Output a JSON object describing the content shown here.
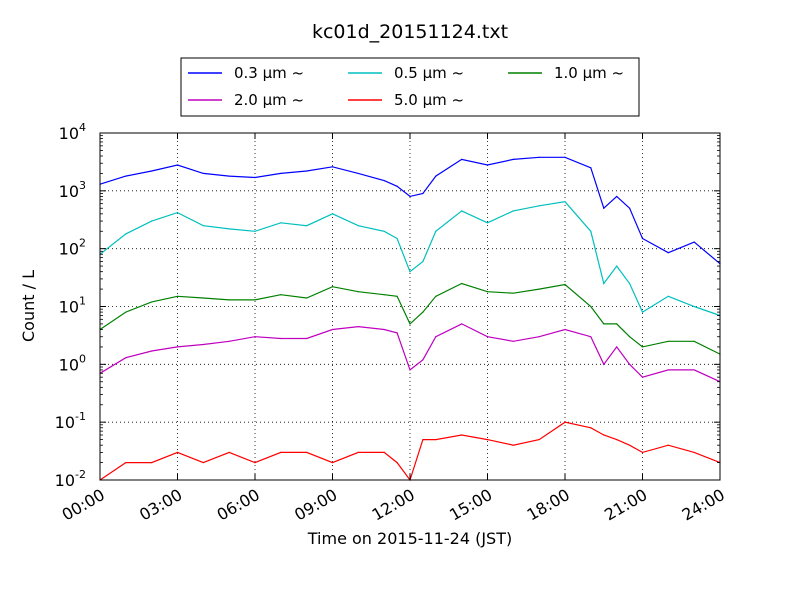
{
  "chart_data": {
    "type": "line",
    "title": "kc01d_20151124.txt",
    "xlabel": "Time on 2015-11-24 (JST)",
    "ylabel": "Count / L",
    "y_scale": "log",
    "ylim": [
      0.01,
      10000
    ],
    "xlim": [
      "00:00",
      "24:00"
    ],
    "grid": true,
    "legend_position": "top-center",
    "x_ticks": [
      "00:00",
      "03:00",
      "06:00",
      "09:00",
      "12:00",
      "15:00",
      "18:00",
      "21:00",
      "24:00"
    ],
    "y_ticks": [
      {
        "base": "10",
        "exp": "-2"
      },
      {
        "base": "10",
        "exp": "-1"
      },
      {
        "base": "10",
        "exp": "0"
      },
      {
        "base": "10",
        "exp": "1"
      },
      {
        "base": "10",
        "exp": "2"
      },
      {
        "base": "10",
        "exp": "3"
      },
      {
        "base": "10",
        "exp": "4"
      }
    ],
    "x": [
      0,
      1,
      2,
      3,
      4,
      5,
      6,
      7,
      8,
      9,
      10,
      11,
      11.5,
      12,
      12.5,
      13,
      14,
      15,
      16,
      17,
      18,
      19,
      19.5,
      20,
      20.5,
      21,
      22,
      23,
      24
    ],
    "series": [
      {
        "name": "0.3 µm ~",
        "color": "#0000ff",
        "values": [
          1300,
          1800,
          2200,
          2800,
          2000,
          1800,
          1700,
          2000,
          2200,
          2600,
          2000,
          1500,
          1200,
          800,
          900,
          1800,
          3500,
          2800,
          3500,
          3800,
          3800,
          2500,
          500,
          800,
          500,
          150,
          85,
          130,
          55
        ]
      },
      {
        "name": "0.5 µm ~",
        "color": "#00bfbf",
        "values": [
          80,
          180,
          300,
          420,
          250,
          220,
          200,
          280,
          250,
          400,
          250,
          200,
          150,
          40,
          60,
          200,
          450,
          280,
          450,
          550,
          650,
          200,
          25,
          50,
          25,
          8,
          15,
          10,
          7
        ]
      },
      {
        "name": "1.0 µm ~",
        "color": "#008000",
        "values": [
          4,
          8,
          12,
          15,
          14,
          13,
          13,
          16,
          14,
          22,
          18,
          16,
          15,
          5,
          8,
          15,
          25,
          18,
          17,
          20,
          24,
          10,
          5,
          5,
          3,
          2,
          2.5,
          2.5,
          1.5
        ]
      },
      {
        "name": "2.0 µm ~",
        "color": "#bf00bf",
        "values": [
          0.7,
          1.3,
          1.7,
          2.0,
          2.2,
          2.5,
          3.0,
          2.8,
          2.8,
          4.0,
          4.5,
          4.0,
          3.5,
          0.8,
          1.2,
          3.0,
          5.0,
          3.0,
          2.5,
          3.0,
          4.0,
          3.0,
          1.0,
          2.0,
          1.0,
          0.6,
          0.8,
          0.8,
          0.5
        ]
      },
      {
        "name": "5.0 µm ~",
        "color": "#ff0000",
        "values": [
          0.01,
          0.02,
          0.02,
          0.03,
          0.02,
          0.03,
          0.02,
          0.03,
          0.03,
          0.02,
          0.03,
          0.03,
          0.02,
          0.01,
          0.05,
          0.05,
          0.06,
          0.05,
          0.04,
          0.05,
          0.1,
          0.08,
          0.06,
          0.05,
          0.04,
          0.03,
          0.04,
          0.03,
          0.02
        ]
      }
    ]
  }
}
